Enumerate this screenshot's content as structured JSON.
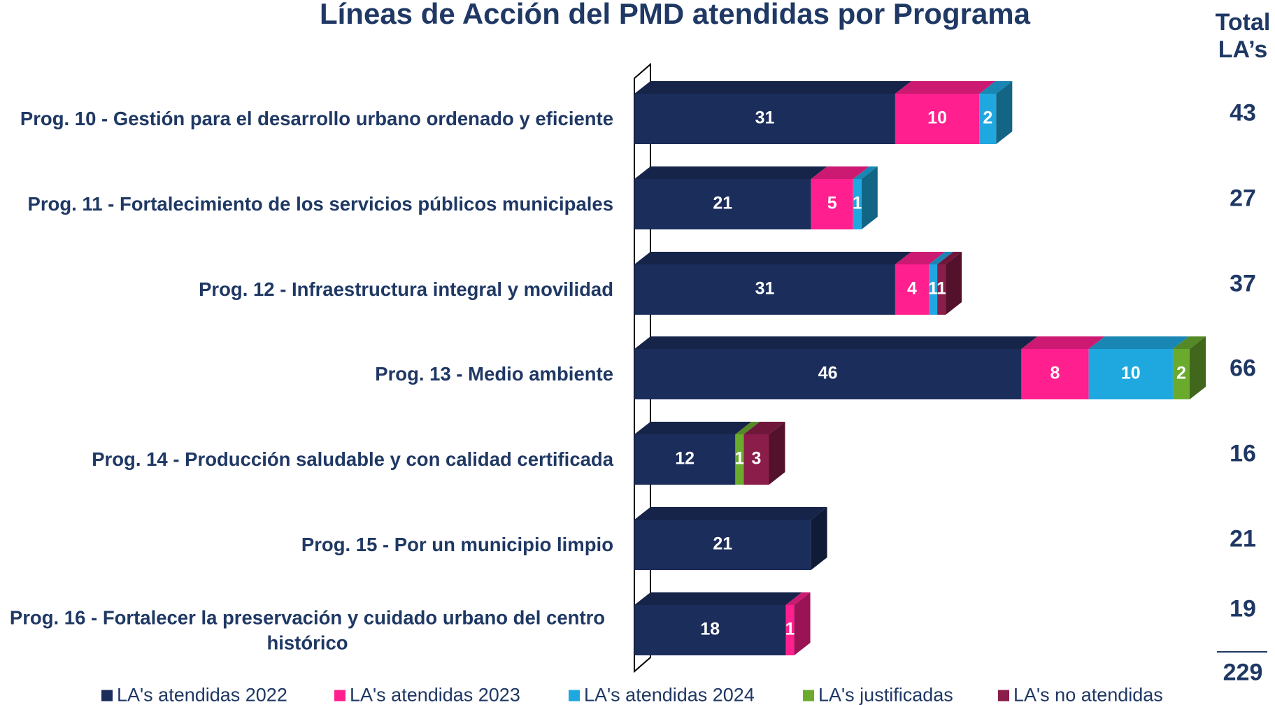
{
  "chart_data": {
    "type": "bar",
    "orientation": "horizontal",
    "stacked": true,
    "title": "Líneas de Acción del PMD atendidas por Programa",
    "categories": [
      "Prog. 10 - Gestión para el desarrollo urbano ordenado y eficiente",
      "Prog. 11 - Fortalecimiento de los servicios públicos municipales",
      "Prog. 12 - Infraestructura integral y movilidad",
      "Prog. 13 - Medio ambiente",
      "Prog. 14 - Producción saludable y con calidad certificada",
      "Prog. 15 - Por un municipio limpio",
      "Prog. 16 - Fortalecer la preservación y cuidado urbano del centro histórico"
    ],
    "series": [
      {
        "name": "LA's atendidas 2022",
        "color": "#1b2d5b",
        "values": [
          31,
          21,
          31,
          46,
          12,
          21,
          18
        ]
      },
      {
        "name": "LA's atendidas 2023",
        "color": "#ff1f8e",
        "values": [
          10,
          5,
          4,
          8,
          null,
          null,
          1
        ]
      },
      {
        "name": "LA's atendidas 2024",
        "color": "#1fa8e0",
        "values": [
          2,
          1,
          1,
          10,
          null,
          null,
          null
        ]
      },
      {
        "name": "LA's justificadas",
        "color": "#6aab2e",
        "values": [
          null,
          null,
          null,
          2,
          1,
          null,
          null
        ]
      },
      {
        "name": "LA's no atendidas",
        "color": "#8b1d4a",
        "values": [
          null,
          null,
          1,
          null,
          3,
          null,
          null
        ]
      }
    ],
    "xlim": [
      0,
      66
    ],
    "totals_header": "Total LA’s",
    "totals": [
      43,
      27,
      37,
      66,
      16,
      21,
      19
    ],
    "grand_total": 229
  }
}
